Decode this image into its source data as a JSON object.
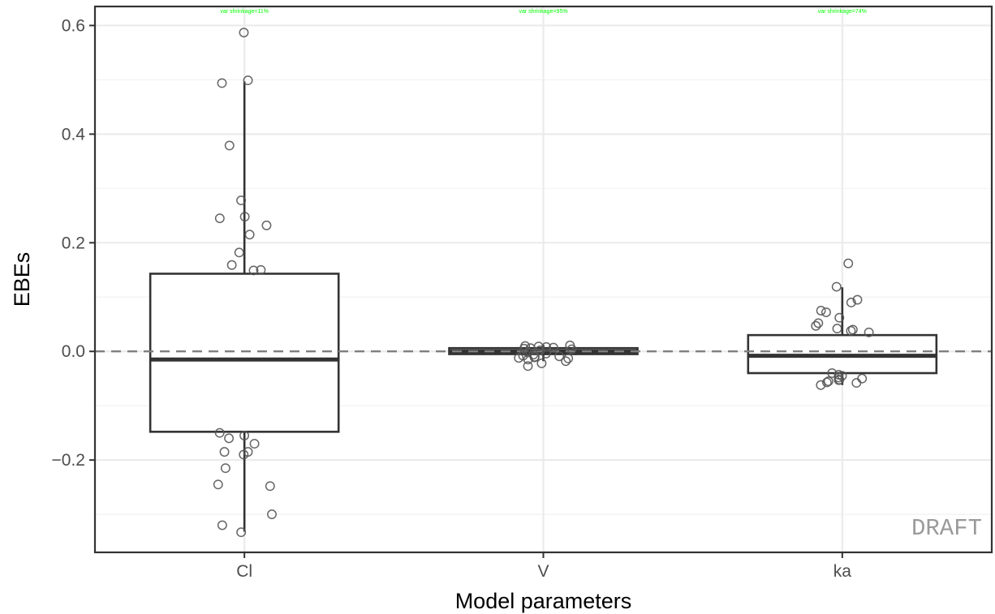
{
  "chart_data": {
    "type": "box",
    "xlabel": "Model parameters",
    "ylabel": "EBEs",
    "categories": [
      "Cl",
      "V",
      "ka"
    ],
    "ylim": [
      -0.37,
      0.635
    ],
    "y_ticks": [
      -0.2,
      0.0,
      0.2,
      0.4,
      0.6
    ],
    "y_tick_labels": [
      "−0.2",
      "0.0",
      "0.2",
      "0.4",
      "0.6"
    ],
    "grid": true,
    "reference_line": {
      "y": 0,
      "style": "dashed",
      "color": "#7f7f7f"
    },
    "watermark": "DRAFT",
    "boxes": [
      {
        "category": "Cl",
        "q1": -0.148,
        "median": -0.015,
        "q3": 0.143,
        "whisker_low": -0.332,
        "whisker_high": 0.497
      },
      {
        "category": "V",
        "q1": -0.005,
        "median": 0.0,
        "q3": 0.006,
        "whisker_low": -0.018,
        "whisker_high": 0.012
      },
      {
        "category": "ka",
        "q1": -0.04,
        "median": -0.008,
        "q3": 0.03,
        "whisker_low": -0.062,
        "whisker_high": 0.118
      }
    ],
    "shrinkage_labels": [
      "var shrinkage=11%",
      "var shrinkage=95%",
      "var shrinkage=74%"
    ],
    "points": [
      {
        "category": "Cl",
        "values": [
          0.587,
          0.499,
          0.494,
          0.379,
          0.278,
          0.248,
          0.245,
          0.232,
          0.215,
          0.182,
          0.159,
          0.15,
          0.149,
          -0.15,
          -0.155,
          -0.16,
          -0.17,
          -0.185,
          -0.185,
          -0.19,
          -0.215,
          -0.245,
          -0.248,
          -0.3,
          -0.32,
          -0.333
        ]
      },
      {
        "category": "V",
        "values": [
          0.011,
          0.01,
          0.009,
          0.008,
          0.007,
          0.006,
          0.005,
          0.004,
          0.002,
          -0.002,
          -0.004,
          -0.006,
          -0.008,
          -0.009,
          -0.01,
          -0.011,
          -0.012,
          -0.013,
          -0.015,
          -0.018,
          -0.022,
          -0.027
        ]
      },
      {
        "category": "ka",
        "values": [
          0.162,
          0.119,
          0.095,
          0.09,
          0.075,
          0.072,
          0.062,
          0.052,
          0.047,
          0.042,
          0.04,
          0.038,
          0.035,
          -0.04,
          -0.043,
          -0.045,
          -0.048,
          -0.05,
          -0.052,
          -0.053,
          -0.055,
          -0.057,
          -0.058,
          -0.062
        ]
      }
    ]
  }
}
